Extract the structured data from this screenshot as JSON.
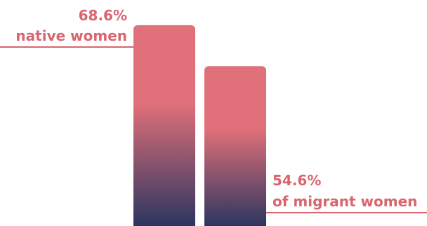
{
  "chart_data": {
    "type": "bar",
    "categories": [
      "native women",
      "migrant women"
    ],
    "series": [
      {
        "values": [
          68.6,
          54.6
        ]
      }
    ],
    "labels": [
      {
        "value_text": "68.6%",
        "text": "native women"
      },
      {
        "value_text": "54.6%",
        "text": "of migrant women"
      }
    ],
    "ylim": [
      0,
      70
    ],
    "grid": false,
    "legend": "none",
    "colors": {
      "bar_top": "#e07079",
      "bar_bottom": "#26335f",
      "label": "#d9656f"
    }
  }
}
